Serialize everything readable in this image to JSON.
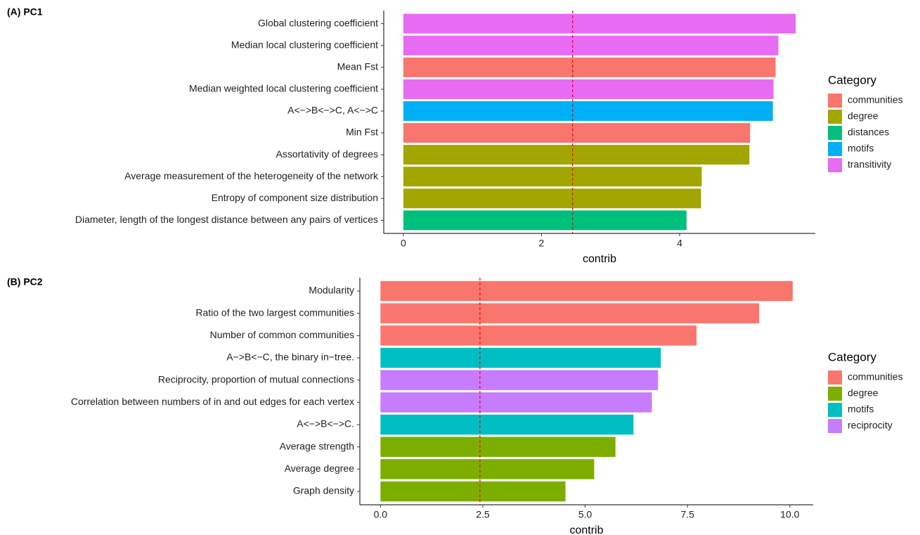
{
  "chart_data": [
    {
      "type": "bar",
      "orientation": "horizontal",
      "title": "(A) PC1",
      "xlabel": "contrib",
      "categories": [
        "Global clustering coefficient",
        "Median local clustering coefficient",
        "Mean Fst",
        "Median weighted local clustering coefficient",
        "A<−>B<−>C, A<−>C",
        "Min Fst",
        "Assortativity of degrees",
        "Average measurement of the heterogeneity of the network",
        "Entropy of component size distribution",
        "Diameter, length of the longest distance between any pairs of vertices"
      ],
      "series": [
        {
          "name": "communities",
          "color": "#F8766D",
          "values": [
            null,
            null,
            5.39,
            null,
            null,
            5.02,
            null,
            null,
            null,
            null
          ]
        },
        {
          "name": "degree",
          "color": "#A3A500",
          "values": [
            null,
            null,
            null,
            null,
            null,
            null,
            5.01,
            4.32,
            4.31,
            null
          ]
        },
        {
          "name": "distances",
          "color": "#00BF7D",
          "values": [
            null,
            null,
            null,
            null,
            null,
            null,
            null,
            null,
            null,
            4.1
          ]
        },
        {
          "name": "motifs",
          "color": "#00B0F6",
          "values": [
            null,
            null,
            null,
            null,
            5.35,
            null,
            null,
            null,
            null,
            null
          ]
        },
        {
          "name": "transitivity",
          "color": "#E76BF3",
          "values": [
            5.68,
            5.43,
            null,
            5.36,
            null,
            null,
            null,
            null,
            null,
            null
          ]
        }
      ],
      "xlim": [
        -0.284,
        5.964
      ],
      "xticks": [
        0,
        2,
        4
      ],
      "ref_line": {
        "value": 2.45,
        "color": "#FF0000"
      },
      "legend_title": "Category",
      "legend_position": "right"
    },
    {
      "type": "bar",
      "orientation": "horizontal",
      "title": "(B) PC2",
      "xlabel": "contrib",
      "categories": [
        "Modularity",
        "Ratio of the two largest communities",
        "Number of common communities",
        "A−>B<−C, the binary in−tree.",
        "Reciprocity, proportion of mutual connections",
        "Correlation between numbers of in and out edges for each vertex",
        "A<−>B<−>C.",
        "Average strength",
        "Average degree",
        "Graph density"
      ],
      "series": [
        {
          "name": "communities",
          "color": "#F8766D",
          "values": [
            10.07,
            9.25,
            7.72,
            null,
            null,
            null,
            null,
            null,
            null,
            null
          ]
        },
        {
          "name": "degree",
          "color": "#7CAE00",
          "values": [
            null,
            null,
            null,
            null,
            null,
            null,
            null,
            5.74,
            5.22,
            4.52
          ]
        },
        {
          "name": "motifs",
          "color": "#00BFC4",
          "values": [
            null,
            null,
            null,
            6.85,
            null,
            null,
            6.18,
            null,
            null,
            null
          ]
        },
        {
          "name": "reciprocity",
          "color": "#C77CFF",
          "values": [
            null,
            null,
            null,
            null,
            6.78,
            6.63,
            null,
            null,
            null,
            null
          ]
        }
      ],
      "xlim": [
        -0.504,
        10.57
      ],
      "xticks": [
        {
          "value": 0,
          "label": "0.0"
        },
        {
          "value": 2.5,
          "label": "2.5"
        },
        {
          "value": 5,
          "label": "5.0"
        },
        {
          "value": 7.5,
          "label": "7.5"
        },
        {
          "value": 10,
          "label": "10.0"
        }
      ],
      "ref_line": {
        "value": 2.43,
        "color": "#FF0000"
      },
      "legend_title": "Category",
      "legend_position": "right"
    }
  ]
}
